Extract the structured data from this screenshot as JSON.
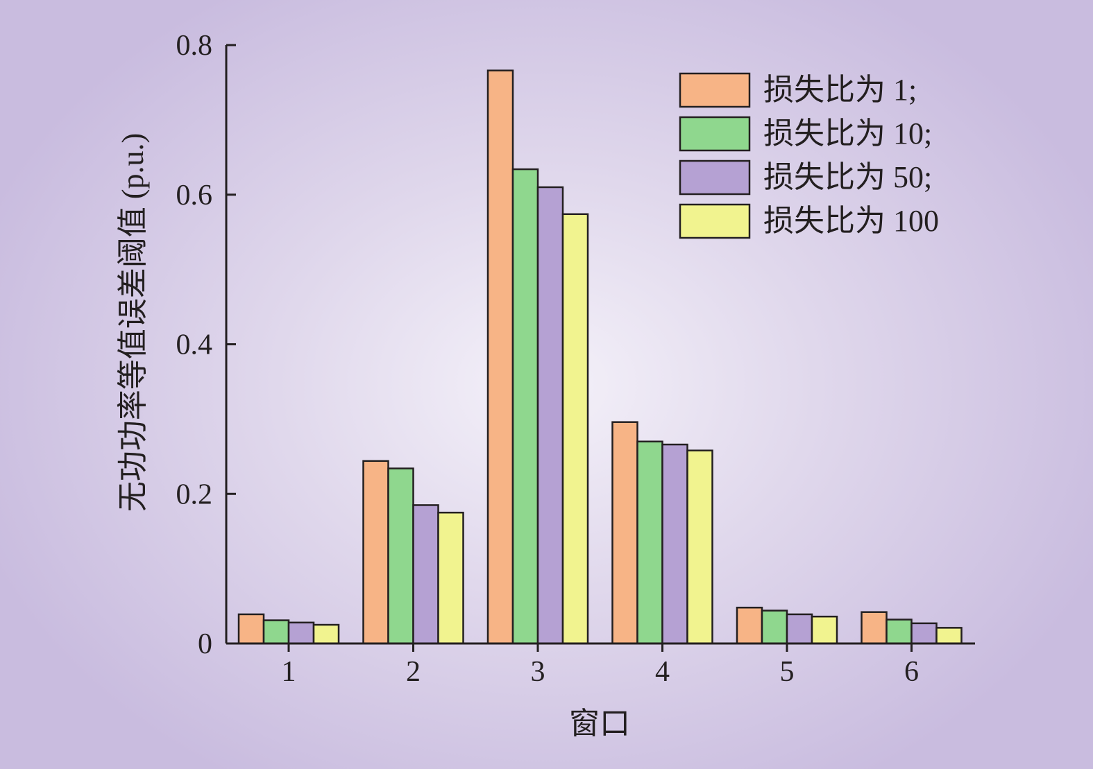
{
  "chart_data": {
    "type": "bar",
    "title": "",
    "xlabel": "窗口",
    "ylabel": "无功功率等值误差阈值 (p.u.)",
    "categories": [
      "1",
      "2",
      "3",
      "4",
      "5",
      "6"
    ],
    "y_ticks": [
      "0",
      "0.2",
      "0.4",
      "0.6",
      "0.8"
    ],
    "ylim": [
      0,
      0.8
    ],
    "grid": false,
    "legend_position": "top-right",
    "series": [
      {
        "name": "损失比为 1;",
        "color": "#f7b486",
        "values": [
          0.039,
          0.244,
          0.766,
          0.296,
          0.048,
          0.042
        ]
      },
      {
        "name": "损失比为 10;",
        "color": "#8fd78e",
        "values": [
          0.031,
          0.234,
          0.634,
          0.27,
          0.044,
          0.032
        ]
      },
      {
        "name": "损失比为 50;",
        "color": "#b5a1d3",
        "values": [
          0.028,
          0.185,
          0.61,
          0.266,
          0.039,
          0.027
        ]
      },
      {
        "name": "损失比为 100",
        "color": "#f1f38f",
        "values": [
          0.025,
          0.175,
          0.574,
          0.258,
          0.036,
          0.021
        ]
      }
    ]
  }
}
